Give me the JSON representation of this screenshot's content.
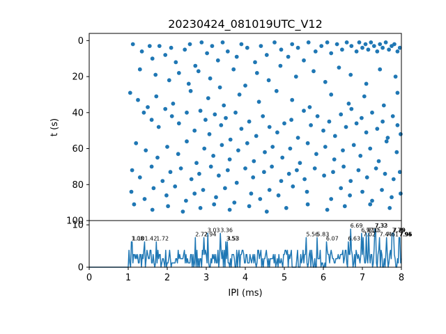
{
  "chart_data": [
    {
      "type": "scatter",
      "panel": "top",
      "title": "20230424_081019UTC_V12",
      "xlabel": "",
      "ylabel": "t (s)",
      "xlim": [
        0,
        8
      ],
      "ylim": [
        100,
        -4
      ],
      "y_inverted": true,
      "yticks": [
        0,
        20,
        40,
        60,
        80,
        100
      ],
      "grid": false,
      "color": "#1f77b4",
      "points": [
        [
          1.12,
          2
        ],
        [
          1.35,
          6
        ],
        [
          1.55,
          3
        ],
        [
          1.62,
          10
        ],
        [
          1.8,
          3
        ],
        [
          1.95,
          8
        ],
        [
          2.1,
          4
        ],
        [
          2.22,
          12
        ],
        [
          2.45,
          5
        ],
        [
          2.58,
          2
        ],
        [
          2.72,
          14
        ],
        [
          2.88,
          1
        ],
        [
          3.02,
          7
        ],
        [
          3.15,
          3
        ],
        [
          3.3,
          11
        ],
        [
          3.42,
          1
        ],
        [
          3.55,
          6
        ],
        [
          3.78,
          9
        ],
        [
          3.9,
          2
        ],
        [
          4.05,
          4
        ],
        [
          4.25,
          12
        ],
        [
          4.4,
          3
        ],
        [
          4.55,
          8
        ],
        [
          4.75,
          1
        ],
        [
          4.92,
          5
        ],
        [
          5.1,
          9
        ],
        [
          5.2,
          2
        ],
        [
          5.35,
          4
        ],
        [
          5.5,
          11
        ],
        [
          5.62,
          1
        ],
        [
          5.8,
          6
        ],
        [
          5.95,
          3
        ],
        [
          6.1,
          1
        ],
        [
          6.2,
          7
        ],
        [
          6.35,
          2
        ],
        [
          6.48,
          5
        ],
        [
          6.6,
          1
        ],
        [
          6.72,
          3
        ],
        [
          6.85,
          6
        ],
        [
          6.92,
          1
        ],
        [
          7.0,
          4
        ],
        [
          7.08,
          2
        ],
        [
          7.15,
          5
        ],
        [
          7.22,
          1
        ],
        [
          7.3,
          3
        ],
        [
          7.38,
          6
        ],
        [
          7.45,
          2
        ],
        [
          7.52,
          4
        ],
        [
          7.6,
          1
        ],
        [
          7.68,
          5
        ],
        [
          7.75,
          3
        ],
        [
          7.82,
          2
        ],
        [
          7.9,
          6
        ],
        [
          7.96,
          4
        ],
        [
          1.3,
          16
        ],
        [
          1.7,
          19
        ],
        [
          2.05,
          22
        ],
        [
          2.3,
          18
        ],
        [
          2.55,
          24
        ],
        [
          2.8,
          17
        ],
        [
          3.1,
          21
        ],
        [
          3.35,
          26
        ],
        [
          3.7,
          16
        ],
        [
          4.0,
          25
        ],
        [
          4.3,
          18
        ],
        [
          4.6,
          22
        ],
        [
          4.9,
          14
        ],
        [
          5.3,
          20
        ],
        [
          5.75,
          17
        ],
        [
          6.05,
          23
        ],
        [
          6.4,
          15
        ],
        [
          6.7,
          19
        ],
        [
          7.1,
          24
        ],
        [
          7.45,
          16
        ],
        [
          7.85,
          20
        ],
        [
          1.05,
          29
        ],
        [
          1.25,
          33
        ],
        [
          1.5,
          37
        ],
        [
          1.72,
          31
        ],
        [
          2.15,
          35
        ],
        [
          2.6,
          28
        ],
        [
          3.05,
          32
        ],
        [
          3.45,
          36
        ],
        [
          3.85,
          30
        ],
        [
          4.35,
          34
        ],
        [
          4.8,
          28
        ],
        [
          5.2,
          33
        ],
        [
          5.65,
          37
        ],
        [
          6.2,
          30
        ],
        [
          6.65,
          35
        ],
        [
          7.05,
          31
        ],
        [
          7.55,
          36
        ],
        [
          7.9,
          29
        ],
        [
          1.4,
          40
        ],
        [
          1.6,
          44
        ],
        [
          1.78,
          48
        ],
        [
          1.95,
          38
        ],
        [
          2.12,
          42
        ],
        [
          2.3,
          46
        ],
        [
          2.5,
          40
        ],
        [
          2.7,
          50
        ],
        [
          2.85,
          39
        ],
        [
          2.98,
          44
        ],
        [
          3.08,
          52
        ],
        [
          3.22,
          41
        ],
        [
          3.38,
          47
        ],
        [
          3.5,
          43
        ],
        [
          3.62,
          55
        ],
        [
          3.75,
          40
        ],
        [
          3.9,
          49
        ],
        [
          4.1,
          45
        ],
        [
          4.28,
          53
        ],
        [
          4.45,
          42
        ],
        [
          4.62,
          48
        ],
        [
          4.82,
          51
        ],
        [
          5.0,
          46
        ],
        [
          5.18,
          44
        ],
        [
          5.35,
          54
        ],
        [
          5.5,
          39
        ],
        [
          5.68,
          47
        ],
        [
          5.85,
          42
        ],
        [
          6.0,
          50
        ],
        [
          6.15,
          45
        ],
        [
          6.3,
          53
        ],
        [
          6.45,
          41
        ],
        [
          6.58,
          48
        ],
        [
          6.72,
          38
        ],
        [
          6.85,
          46
        ],
        [
          6.98,
          43
        ],
        [
          7.1,
          51
        ],
        [
          7.25,
          40
        ],
        [
          7.38,
          49
        ],
        [
          7.52,
          45
        ],
        [
          7.65,
          54
        ],
        [
          7.78,
          42
        ],
        [
          7.9,
          47
        ],
        [
          7.98,
          52
        ],
        [
          1.2,
          57
        ],
        [
          1.45,
          61
        ],
        [
          1.75,
          65
        ],
        [
          2.0,
          59
        ],
        [
          2.28,
          63
        ],
        [
          2.5,
          56
        ],
        [
          2.75,
          68
        ],
        [
          2.95,
          60
        ],
        [
          3.18,
          64
        ],
        [
          3.4,
          58
        ],
        [
          3.6,
          66
        ],
        [
          3.82,
          61
        ],
        [
          4.05,
          57
        ],
        [
          4.22,
          67
        ],
        [
          4.5,
          62
        ],
        [
          4.7,
          59
        ],
        [
          4.95,
          65
        ],
        [
          5.15,
          60
        ],
        [
          5.4,
          68
        ],
        [
          5.6,
          57
        ],
        [
          5.82,
          63
        ],
        [
          6.05,
          59
        ],
        [
          6.28,
          66
        ],
        [
          6.5,
          61
        ],
        [
          6.78,
          58
        ],
        [
          6.95,
          64
        ],
        [
          7.2,
          60
        ],
        [
          7.42,
          67
        ],
        [
          7.62,
          56
        ],
        [
          7.88,
          62
        ],
        [
          1.1,
          72
        ],
        [
          1.3,
          76
        ],
        [
          1.6,
          70
        ],
        [
          1.88,
          78
        ],
        [
          2.08,
          73
        ],
        [
          2.35,
          71
        ],
        [
          2.62,
          77
        ],
        [
          2.82,
          74
        ],
        [
          3.12,
          70
        ],
        [
          3.32,
          75
        ],
        [
          3.55,
          72
        ],
        [
          3.78,
          79
        ],
        [
          4.0,
          71
        ],
        [
          4.2,
          76
        ],
        [
          4.48,
          73
        ],
        [
          4.68,
          70
        ],
        [
          4.92,
          78
        ],
        [
          5.12,
          74
        ],
        [
          5.32,
          72
        ],
        [
          5.52,
          77
        ],
        [
          5.78,
          71
        ],
        [
          6.02,
          75
        ],
        [
          6.25,
          73
        ],
        [
          6.52,
          70
        ],
        [
          6.7,
          78
        ],
        [
          6.9,
          72
        ],
        [
          7.12,
          76
        ],
        [
          7.35,
          71
        ],
        [
          7.58,
          74
        ],
        [
          7.8,
          77
        ],
        [
          7.96,
          73
        ],
        [
          1.08,
          84
        ],
        [
          1.42,
          88
        ],
        [
          1.65,
          82
        ],
        [
          1.98,
          86
        ],
        [
          2.2,
          81
        ],
        [
          2.48,
          89
        ],
        [
          2.7,
          85
        ],
        [
          2.92,
          83
        ],
        [
          3.25,
          87
        ],
        [
          3.48,
          82
        ],
        [
          3.72,
          90
        ],
        [
          4.15,
          85
        ],
        [
          4.38,
          88
        ],
        [
          4.62,
          83
        ],
        [
          4.85,
          86
        ],
        [
          5.22,
          81
        ],
        [
          5.58,
          84
        ],
        [
          6.2,
          88
        ],
        [
          6.45,
          82
        ],
        [
          6.68,
          86
        ],
        [
          7.0,
          84
        ],
        [
          7.25,
          89
        ],
        [
          7.5,
          83
        ],
        [
          7.75,
          87
        ],
        [
          7.98,
          85
        ],
        [
          1.15,
          91
        ],
        [
          1.62,
          94
        ],
        [
          2.02,
          92
        ],
        [
          2.4,
          95
        ],
        [
          2.85,
          93
        ],
        [
          3.2,
          91
        ],
        [
          3.6,
          94
        ],
        [
          4.1,
          92
        ],
        [
          4.55,
          95
        ],
        [
          5.05,
          93
        ],
        [
          5.6,
          91
        ],
        [
          6.1,
          94
        ],
        [
          6.55,
          92
        ],
        [
          7.2,
          91
        ],
        [
          7.7,
          93
        ]
      ]
    },
    {
      "type": "line",
      "panel": "bottom",
      "title": "",
      "xlabel": "IPI (ms)",
      "ylabel": "",
      "xlim": [
        0,
        8
      ],
      "ylim": [
        0,
        11
      ],
      "xticks": [
        0,
        1,
        2,
        3,
        4,
        5,
        6,
        7,
        8
      ],
      "yticks": [
        0,
        10
      ],
      "grid": false,
      "color": "#1f77b4",
      "step": 0.02,
      "onset": 1.0,
      "peaks": [
        {
          "x": 1.08,
          "y": 6,
          "label": "1.08"
        },
        {
          "x": 1.1,
          "y": 6,
          "label": "1.10"
        },
        {
          "x": 1.42,
          "y": 6,
          "label": "1.42"
        },
        {
          "x": 1.72,
          "y": 6,
          "label": "1.72"
        },
        {
          "x": 2.72,
          "y": 7,
          "label": "2.72"
        },
        {
          "x": 2.94,
          "y": 7,
          "label": "2.94"
        },
        {
          "x": 3.03,
          "y": 8,
          "label": "3.03"
        },
        {
          "x": 3.36,
          "y": 8,
          "label": "3.36"
        },
        {
          "x": 3.51,
          "y": 6,
          "label": "3.51"
        },
        {
          "x": 3.53,
          "y": 6,
          "label": "3.53"
        },
        {
          "x": 5.56,
          "y": 7,
          "label": "5.56"
        },
        {
          "x": 5.83,
          "y": 7,
          "label": "5.83"
        },
        {
          "x": 6.07,
          "y": 6,
          "label": "6.07"
        },
        {
          "x": 6.63,
          "y": 6,
          "label": "6.63"
        },
        {
          "x": 6.69,
          "y": 9,
          "label": "6.69"
        },
        {
          "x": 6.97,
          "y": 8,
          "label": "6.97"
        },
        {
          "x": 7.02,
          "y": 7,
          "label": "7.02"
        },
        {
          "x": 7.1,
          "y": 8,
          "label": "7.10"
        },
        {
          "x": 7.15,
          "y": 8,
          "label": "7.15"
        },
        {
          "x": 7.32,
          "y": 9,
          "label": "7.32"
        },
        {
          "x": 7.33,
          "y": 9,
          "label": "7.33"
        },
        {
          "x": 7.44,
          "y": 7,
          "label": "7.44"
        },
        {
          "x": 7.61,
          "y": 7,
          "label": "7.61"
        },
        {
          "x": 7.76,
          "y": 8,
          "label": "7.76"
        },
        {
          "x": 7.78,
          "y": 8,
          "label": "7.78"
        },
        {
          "x": 7.79,
          "y": 8,
          "label": "7.79"
        },
        {
          "x": 7.94,
          "y": 7,
          "label": "7.94"
        },
        {
          "x": 7.95,
          "y": 7,
          "label": "7.95"
        },
        {
          "x": 7.96,
          "y": 7,
          "label": "7.96"
        }
      ]
    }
  ]
}
